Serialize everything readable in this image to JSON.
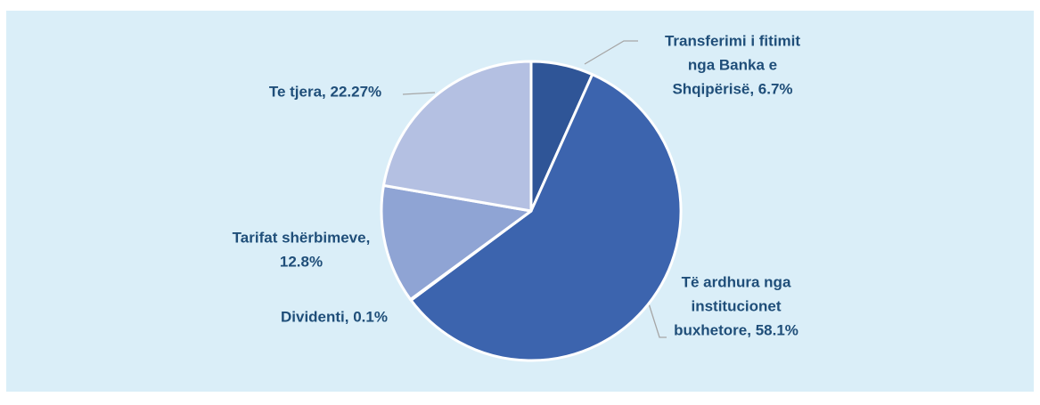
{
  "chart_data": {
    "type": "pie",
    "values": [
      6.7,
      58.1,
      0.1,
      12.8,
      22.27
    ],
    "value_labels": [
      [
        "Transferimi i fitimit",
        "nga Banka e",
        "Shqipërisë, 6.7%"
      ],
      [
        "Të ardhura nga",
        "institucionet",
        "buxhetore, 58.1%"
      ],
      [
        "Dividenti, 0.1%"
      ],
      [
        "Tarifat shërbimeve,",
        "12.8%"
      ],
      [
        "Te tjera, 22.27%"
      ]
    ],
    "colors": [
      "#2F5597",
      "#3C64AE",
      "#4A6FB8",
      "#8FA4D4",
      "#B4C0E2"
    ]
  }
}
